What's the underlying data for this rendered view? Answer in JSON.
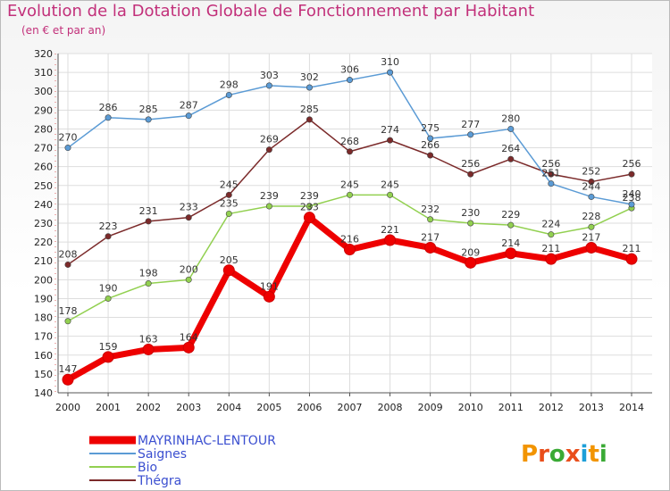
{
  "header": {
    "title": "Evolution de la Dotation Globale de Fonctionnement par Habitant",
    "subtitle": "(en € et par an)"
  },
  "logo_text": "Proxiti",
  "chart_data": {
    "type": "line",
    "title": "Evolution de la Dotation Globale de Fonctionnement par Habitant",
    "subtitle": "(en € et par an)",
    "xlabel": "",
    "ylabel": "",
    "x": [
      "2000",
      "2001",
      "2002",
      "2003",
      "2004",
      "2005",
      "2006",
      "2007",
      "2008",
      "2009",
      "2010",
      "2011",
      "2012",
      "2013",
      "2014"
    ],
    "ylim": [
      140,
      320
    ],
    "yticks": [
      140,
      150,
      160,
      170,
      180,
      190,
      200,
      210,
      220,
      230,
      240,
      250,
      260,
      270,
      280,
      290,
      300,
      310,
      320
    ],
    "grid": true,
    "legend_position": "bottom-left",
    "series": [
      {
        "name": "MAYRINHAC-LENTOUR",
        "color": "#ee0000",
        "values": [
          147,
          159,
          163,
          164,
          205,
          191,
          233,
          216,
          221,
          217,
          209,
          214,
          211,
          217,
          211
        ],
        "labels": [
          "147",
          "159",
          "163",
          "164",
          "205",
          "191",
          "233",
          "216",
          "221",
          "217",
          "209",
          "214",
          "211",
          "217",
          "211"
        ]
      },
      {
        "name": "Saignes",
        "color": "#5b9bd5",
        "values": [
          270,
          286,
          285,
          287,
          298,
          303,
          302,
          306,
          310,
          275,
          277,
          280,
          251,
          244,
          240
        ],
        "labels": [
          "270",
          "286",
          "285",
          "287",
          "298",
          "303",
          "302",
          "306",
          "310",
          "275",
          "277",
          "280",
          "251",
          "244",
          "240"
        ]
      },
      {
        "name": "Bio",
        "color": "#92d050",
        "values": [
          178,
          190,
          198,
          200,
          235,
          239,
          239,
          245,
          245,
          232,
          230,
          229,
          224,
          228,
          238
        ],
        "labels": [
          "178",
          "190",
          "198",
          "200",
          "235",
          "239",
          "239",
          "245",
          "245",
          "232",
          "230",
          "229",
          "224",
          "228",
          "238"
        ]
      },
      {
        "name": "Thégra",
        "color": "#7b2a2a",
        "values": [
          208,
          223,
          231,
          233,
          245,
          269,
          285,
          268,
          274,
          266,
          256,
          264,
          256,
          252,
          256
        ],
        "labels": [
          "208",
          "223",
          "231",
          "233",
          "245",
          "269",
          "285",
          "268",
          "274",
          "266",
          "256",
          "264",
          "256",
          "252",
          "256"
        ]
      }
    ]
  }
}
